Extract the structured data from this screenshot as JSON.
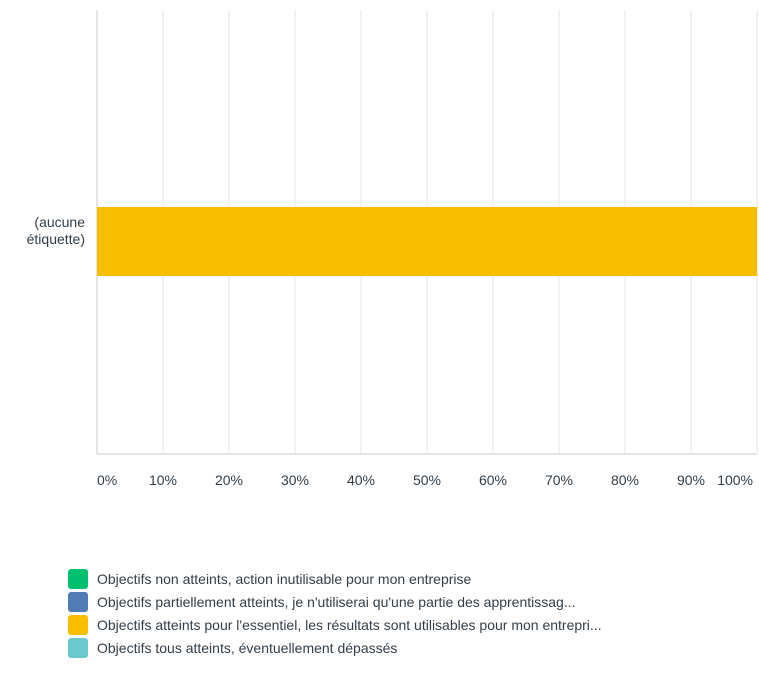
{
  "chart_data": {
    "type": "bar",
    "orientation": "horizontal",
    "stacked": true,
    "categories": [
      "(aucune étiquette)"
    ],
    "category_label_lines": [
      [
        "(aucune",
        "étiquette)"
      ]
    ],
    "series": [
      {
        "name": "Objectifs non atteints, action inutilisable pour mon entreprise",
        "color": "#00bf6f",
        "values": [
          0
        ]
      },
      {
        "name": "Objectifs partiellement atteints, je n'utiliserai qu'une partie des apprentissag...",
        "color": "#507cb6",
        "values": [
          0
        ]
      },
      {
        "name": "Objectifs atteints pour l'essentiel, les résultats sont utilisables pour mon entrepri...",
        "color": "#f9be00",
        "values": [
          100
        ]
      },
      {
        "name": "Objectifs tous atteints, éventuellement dépassés",
        "color": "#6bc8cd",
        "values": [
          0
        ]
      }
    ],
    "xlim": [
      0,
      100
    ],
    "x_ticks": [
      "0%",
      "10%",
      "20%",
      "30%",
      "40%",
      "50%",
      "60%",
      "70%",
      "80%",
      "90%",
      "100%"
    ],
    "grid": true,
    "legend_position": "bottom"
  }
}
